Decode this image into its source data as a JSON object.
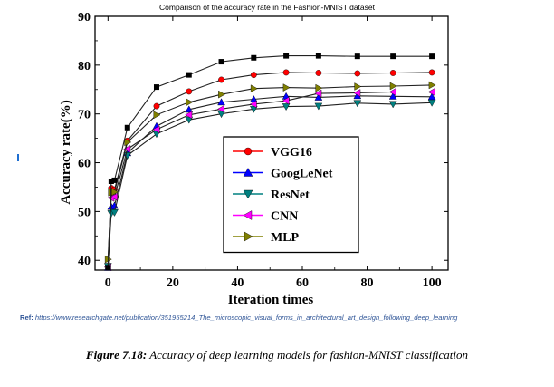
{
  "chart_data": {
    "type": "line",
    "title": "Comparison of the accuracy rate in the Fashion-MNIST dataset",
    "xlabel": "Iteration times",
    "ylabel": "Accuracy rate(%)",
    "xlim": [
      -4,
      105
    ],
    "ylim": [
      38,
      90
    ],
    "xticks": [
      0,
      20,
      40,
      60,
      80,
      100
    ],
    "yticks": [
      40,
      50,
      60,
      70,
      80,
      90
    ],
    "grid": false,
    "legend_position": "center-right",
    "series": [
      {
        "name": "VGG16",
        "color": "#ff0000",
        "marker": "circle",
        "x": [
          0,
          1,
          2,
          6,
          15,
          25,
          35,
          45,
          55,
          65,
          77,
          88,
          100
        ],
        "y": [
          38.8,
          54.8,
          54.5,
          64.5,
          71.6,
          74.6,
          77.0,
          78.0,
          78.5,
          78.4,
          78.3,
          78.4,
          78.5
        ]
      },
      {
        "name": "GoogLeNet",
        "color": "#0000ff",
        "marker": "triangle-up",
        "x": [
          0,
          1,
          2,
          6,
          15,
          25,
          35,
          45,
          55,
          65,
          77,
          88,
          100
        ],
        "y": [
          38.5,
          51.0,
          51.2,
          62.0,
          67.5,
          70.9,
          72.4,
          73.0,
          73.6,
          73.4,
          73.7,
          73.6,
          73.5
        ]
      },
      {
        "name": "ResNet",
        "color": "#008080",
        "marker": "triangle-down",
        "x": [
          0,
          1,
          2,
          6,
          15,
          25,
          35,
          45,
          55,
          65,
          77,
          88,
          100
        ],
        "y": [
          38.8,
          49.6,
          49.8,
          61.5,
          65.9,
          68.8,
          70.0,
          71.0,
          71.5,
          71.6,
          72.2,
          72.0,
          72.3
        ]
      },
      {
        "name": "CNN",
        "color": "#ff00ff",
        "marker": "triangle-left",
        "x": [
          0,
          1,
          2,
          6,
          15,
          25,
          35,
          45,
          55,
          65,
          77,
          88,
          100
        ],
        "y": [
          38.6,
          52.8,
          53.0,
          62.8,
          66.8,
          69.8,
          71.0,
          72.0,
          72.7,
          74.2,
          74.3,
          74.5,
          74.5
        ]
      },
      {
        "name": "MLP",
        "color": "#808000",
        "marker": "triangle-right",
        "x": [
          0,
          1,
          2,
          6,
          15,
          25,
          35,
          45,
          55,
          65,
          77,
          88,
          100
        ],
        "y": [
          40.2,
          53.9,
          54.0,
          64.2,
          69.8,
          72.4,
          74.0,
          75.2,
          75.4,
          75.3,
          75.6,
          75.7,
          75.9
        ]
      },
      {
        "name": "",
        "color": "#000000",
        "marker": "square",
        "x": [
          0,
          1,
          2,
          6,
          15,
          25,
          35,
          45,
          55,
          65,
          77,
          88,
          100
        ],
        "y": [
          38.5,
          56.2,
          56.4,
          67.2,
          75.5,
          78.0,
          80.7,
          81.5,
          81.9,
          81.9,
          81.8,
          81.8,
          81.8
        ]
      }
    ]
  },
  "reference": {
    "label": "Ref:",
    "url": "https://www.researchgate.net/publication/351955214_The_microscopic_visual_forms_in_architectural_art_design_following_deep_learning"
  },
  "caption": {
    "label": "Figure 7.18:",
    "text": "Accuracy of deep learning models for fashion-MNIST classification"
  },
  "colors": {
    "reference_text": "#2f5597",
    "edge_mark": "#1f6fd1"
  }
}
